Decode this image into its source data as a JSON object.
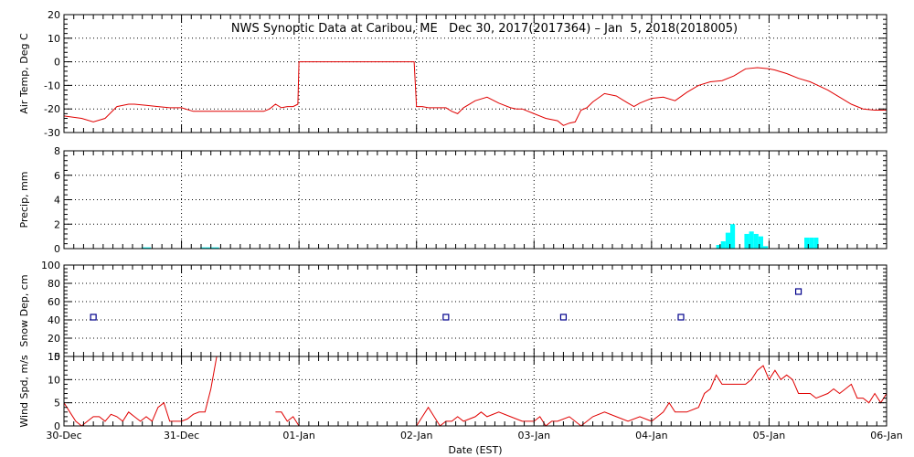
{
  "chart_data": {
    "title": "NWS Synoptic Data at Caribou, ME   Dec 30, 2017(2017364) – Jan  5, 2018(2018005)",
    "xlabel": "Date (EST)",
    "x_ticks": [
      "30-Dec",
      "31-Dec",
      "01-Jan",
      "02-Jan",
      "03-Jan",
      "04-Jan",
      "05-Jan",
      "06-Jan"
    ],
    "grid": true,
    "panels": [
      {
        "name": "air_temp",
        "type": "line",
        "ylabel": "Air Temp, Deg C",
        "ylim": [
          -30,
          20
        ],
        "yticks": [
          -30,
          -20,
          -10,
          0,
          10,
          20
        ],
        "color": "#e00000",
        "x_days": [
          0.0,
          0.15,
          0.25,
          0.35,
          0.45,
          0.55,
          0.6,
          0.7,
          0.8,
          0.9,
          1.0,
          1.1,
          1.2,
          1.3,
          1.4,
          1.5,
          1.6,
          1.7,
          1.75,
          1.8,
          1.85,
          1.9,
          1.95,
          1.99,
          2.0,
          2.05,
          2.2,
          2.4,
          2.6,
          2.8,
          2.98,
          3.0,
          3.05,
          3.1,
          3.2,
          3.25,
          3.3,
          3.35,
          3.4,
          3.5,
          3.6,
          3.7,
          3.8,
          3.85,
          3.9,
          4.0,
          4.1,
          4.2,
          4.25,
          4.3,
          4.35,
          4.4,
          4.45,
          4.5,
          4.6,
          4.7,
          4.75,
          4.8,
          4.85,
          4.9,
          4.95,
          5.0,
          5.1,
          5.2,
          5.3,
          5.4,
          5.5,
          5.6,
          5.7,
          5.8,
          5.9,
          6.0,
          6.05,
          6.15,
          6.25,
          6.35,
          6.5,
          6.6,
          6.7,
          6.8,
          6.9,
          7.0
        ],
        "values": [
          -23,
          -24,
          -25.5,
          -24,
          -19,
          -18,
          -18,
          -18.5,
          -19,
          -19.5,
          -19.5,
          -21,
          -21,
          -21,
          -21,
          -21,
          -21,
          -21,
          -20,
          -18,
          -19.5,
          -19,
          -19,
          -18,
          0,
          0,
          0,
          0,
          0,
          0,
          0,
          -19,
          -19,
          -19.5,
          -19.5,
          -19.5,
          -21,
          -22,
          -19.5,
          -16.5,
          -15,
          -17.5,
          -19.5,
          -20,
          -20,
          -22,
          -24,
          -25,
          -27,
          -26,
          -25.5,
          -20.5,
          -19.5,
          -17,
          -13.5,
          -14.5,
          -16,
          -17.5,
          -19,
          -17.5,
          -16.5,
          -15.5,
          -15,
          -16.5,
          -13,
          -10,
          -8.5,
          -8,
          -6,
          -3,
          -2.5,
          -3,
          -3.5,
          -5,
          -7,
          -8.5,
          -12,
          -15,
          -18,
          -20,
          -20.5,
          -20.5
        ]
      },
      {
        "name": "precip",
        "type": "bar",
        "ylabel": "Precip, mm",
        "ylim": [
          0,
          8
        ],
        "yticks": [
          0,
          2,
          4,
          6,
          8
        ],
        "color": "#00ffff",
        "x_days": [
          0.66,
          0.7,
          1.16,
          1.2,
          1.24,
          1.28,
          5.55,
          5.59,
          5.63,
          5.67,
          5.71,
          5.75,
          5.79,
          5.83,
          5.87,
          5.91,
          5.95,
          6.3,
          6.34,
          6.38,
          6.42
        ],
        "values": [
          0.1,
          0.1,
          0.1,
          0.1,
          0.1,
          0.1,
          0.3,
          0.6,
          1.3,
          2.0,
          0.0,
          0.0,
          1.2,
          1.4,
          1.2,
          1.0,
          0.2,
          0.9,
          0.9,
          0.9,
          0.0
        ]
      },
      {
        "name": "snow_depth",
        "type": "scatter",
        "ylabel": "Snow Dep, cm",
        "ylim": [
          0,
          100
        ],
        "yticks": [
          0,
          20,
          40,
          60,
          80,
          100
        ],
        "color": "#00008b",
        "x_days": [
          0.25,
          3.25,
          4.25,
          5.25,
          6.25
        ],
        "values": [
          43,
          43,
          43,
          43,
          71
        ]
      },
      {
        "name": "wind_speed",
        "type": "line",
        "ylabel": "Wind Spd, m/s",
        "ylim": [
          0,
          15
        ],
        "yticks": [
          0,
          5,
          10,
          15
        ],
        "color": "#e00000",
        "segments": [
          {
            "x_days": [
              0.0,
              0.05,
              0.1,
              0.15,
              0.2,
              0.25,
              0.3,
              0.35,
              0.4,
              0.45,
              0.5,
              0.55,
              0.6,
              0.65,
              0.7,
              0.75,
              0.8,
              0.85,
              0.9,
              0.95,
              1.0,
              1.05,
              1.1,
              1.15,
              1.2,
              1.25,
              1.3,
              1.35
            ],
            "values": [
              5,
              3,
              1,
              0,
              1,
              2,
              2,
              1,
              2.5,
              2,
              1,
              3,
              2,
              1,
              2,
              1,
              4,
              5,
              1,
              1,
              1,
              1.5,
              2.5,
              3,
              3,
              8,
              15,
              15
            ]
          },
          {
            "x_days": [
              1.8,
              1.85,
              1.9,
              1.95,
              2.0
            ],
            "values": [
              3,
              3,
              1,
              2,
              0
            ]
          },
          {
            "x_days": [
              3.0,
              3.05,
              3.1,
              3.15,
              3.2,
              3.25,
              3.3,
              3.35,
              3.4,
              3.5,
              3.55,
              3.6,
              3.7,
              3.8,
              3.9,
              4.0,
              4.05,
              4.1,
              4.15,
              4.2,
              4.3,
              4.4,
              4.5,
              4.6,
              4.7,
              4.8,
              4.9,
              5.0,
              5.05,
              5.1,
              5.15,
              5.2,
              5.3,
              5.4,
              5.45,
              5.5,
              5.55,
              5.6,
              5.7,
              5.75,
              5.8,
              5.85,
              5.9,
              5.95,
              6.0,
              6.05,
              6.1,
              6.15,
              6.2,
              6.25,
              6.3,
              6.35,
              6.4,
              6.5,
              6.55,
              6.6,
              6.65,
              6.7,
              6.75,
              6.8,
              6.85,
              6.9,
              6.95,
              7.0
            ],
            "values": [
              0,
              2,
              4,
              2,
              0,
              1,
              1,
              2,
              1,
              2,
              3,
              2,
              3,
              2,
              1,
              1,
              2,
              0,
              1,
              1,
              2,
              0,
              2,
              3,
              2,
              1,
              2,
              1,
              2,
              3,
              5,
              3,
              3,
              4,
              7,
              8,
              11,
              9,
              9,
              9,
              9,
              10,
              12,
              13,
              10,
              12,
              10,
              11,
              10,
              7,
              7,
              7,
              6,
              7,
              8,
              7,
              8,
              9,
              6,
              6,
              5,
              7,
              5,
              7
            ]
          }
        ]
      }
    ]
  }
}
